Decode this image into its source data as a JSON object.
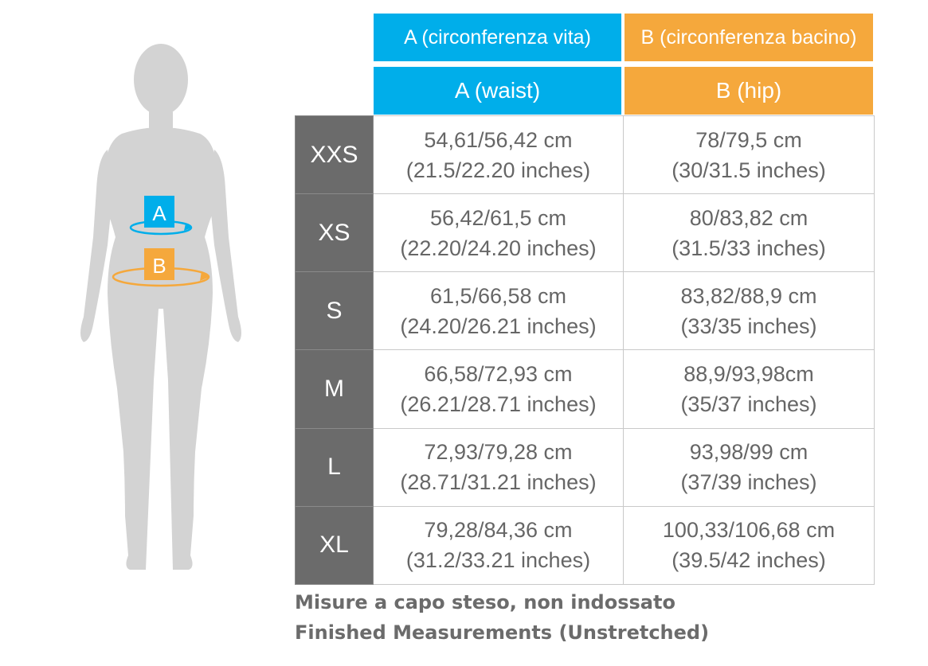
{
  "colors": {
    "waist": "#00aeea",
    "hip": "#f5a83c",
    "size_cell": "#6b6b6b",
    "figure": "#d3d3d3"
  },
  "figure": {
    "label_a": "A",
    "label_b": "B"
  },
  "header": {
    "a_italian": "A (circonferenza vita)",
    "b_italian": "B (circonferenza bacino)",
    "a_english": "A (waist)",
    "b_english": "B (hip)"
  },
  "rows": [
    {
      "size": "XXS",
      "waist_cm": "54,61/56,42 cm",
      "waist_in": "(21.5/22.20 inches)",
      "hip_cm": "78/79,5 cm",
      "hip_in": "(30/31.5 inches)"
    },
    {
      "size": "XS",
      "waist_cm": "56,42/61,5 cm",
      "waist_in": "(22.20/24.20 inches)",
      "hip_cm": "80/83,82 cm",
      "hip_in": "(31.5/33 inches)"
    },
    {
      "size": "S",
      "waist_cm": "61,5/66,58 cm",
      "waist_in": "(24.20/26.21 inches)",
      "hip_cm": "83,82/88,9 cm",
      "hip_in": "(33/35 inches)"
    },
    {
      "size": "M",
      "waist_cm": "66,58/72,93 cm",
      "waist_in": "(26.21/28.71 inches)",
      "hip_cm": "88,9/93,98cm",
      "hip_in": "(35/37 inches)"
    },
    {
      "size": "L",
      "waist_cm": "72,93/79,28 cm",
      "waist_in": "(28.71/31.21 inches)",
      "hip_cm": "93,98/99 cm",
      "hip_in": "(37/39 inches)"
    },
    {
      "size": "XL",
      "waist_cm": "79,28/84,36 cm",
      "waist_in": "(31.2/33.21 inches)",
      "hip_cm": "100,33/106,68 cm",
      "hip_in": "(39.5/42 inches)"
    }
  ],
  "notes": {
    "italian": "Misure a capo steso, non indossato",
    "english": "Finished Measurements (Unstretched)"
  }
}
